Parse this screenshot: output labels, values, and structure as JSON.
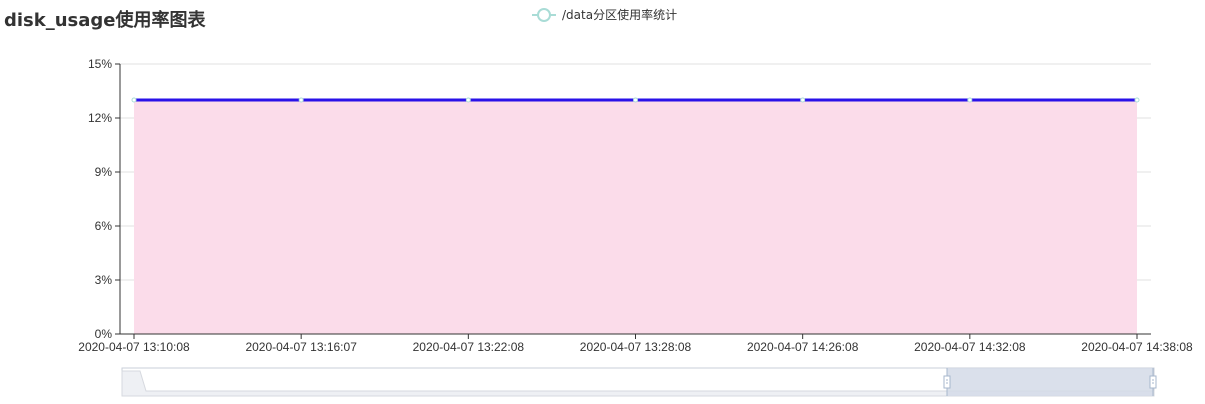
{
  "chart_title": "disk_usage使用率图表",
  "chart_data": {
    "type": "area",
    "title": "disk_usage使用率图表",
    "xlabel": "",
    "ylabel": "",
    "categories": [
      "2020-04-07 13:10:08",
      "2020-04-07 13:16:07",
      "2020-04-07 13:22:08",
      "2020-04-07 13:28:08",
      "2020-04-07 14:26:08",
      "2020-04-07 14:32:08",
      "2020-04-07 14:38:08"
    ],
    "series": [
      {
        "name": "/data分区使用率统计",
        "values": [
          13,
          13,
          13,
          13,
          13,
          13,
          13
        ]
      }
    ],
    "ylim": [
      0,
      15
    ],
    "yticks": [
      "0%",
      "3%",
      "6%",
      "9%",
      "12%",
      "15%"
    ],
    "grid": true,
    "legend_position": "top-center",
    "data_zoom": true
  },
  "colors": {
    "line": "#2a12e8",
    "area": "#fbdcea",
    "marker_stroke": "#a9dcd6",
    "grid": "#e0e0e0",
    "axis": "#333333",
    "zoom_fill": "#d3dbe8",
    "zoom_border": "#c9cfda"
  }
}
